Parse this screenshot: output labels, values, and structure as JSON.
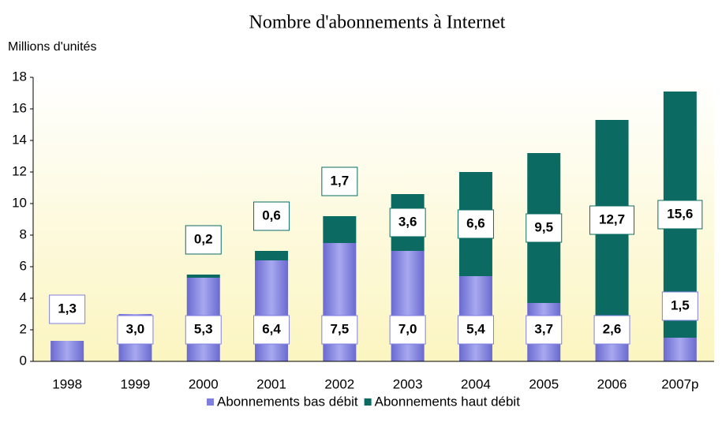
{
  "chart_data": {
    "type": "stacked_bar",
    "title": "Nombre d'abonnements à Internet",
    "y_axis_label": "Millions d'unités",
    "categories": [
      "1998",
      "1999",
      "2000",
      "2001",
      "2002",
      "2003",
      "2004",
      "2005",
      "2006",
      "2007p"
    ],
    "series": [
      {
        "name": "Abonnements bas débit",
        "color": "#7f7fe0",
        "values": [
          1.3,
          3.0,
          5.3,
          6.4,
          7.5,
          7.0,
          5.4,
          3.7,
          2.6,
          1.5
        ],
        "value_labels": [
          "1,3",
          "3,0",
          "5,3",
          "6,4",
          "7,5",
          "7,0",
          "5,4",
          "3,7",
          "2,6",
          "1,5"
        ]
      },
      {
        "name": "Abonnements haut débit",
        "color": "#0b6b63",
        "values": [
          0,
          0,
          0.2,
          0.6,
          1.7,
          3.6,
          6.6,
          9.5,
          12.7,
          15.6
        ],
        "value_labels": [
          null,
          null,
          "0,2",
          "0,6",
          "1,7",
          "3,6",
          "6,6",
          "9,5",
          "12,7",
          "15,6"
        ]
      }
    ],
    "ylim": [
      0,
      18
    ],
    "yticks": [
      0,
      2,
      4,
      6,
      8,
      10,
      12,
      14,
      16,
      18
    ],
    "grid": false,
    "legend": "bottom"
  }
}
